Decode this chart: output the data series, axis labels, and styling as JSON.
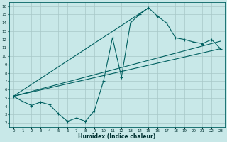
{
  "title": "",
  "xlabel": "Humidex (Indice chaleur)",
  "ylabel": "",
  "bg_color": "#c8e8e8",
  "grid_color": "#a8c8c8",
  "line_color": "#006060",
  "xlim": [
    -0.5,
    23.5
  ],
  "ylim": [
    1.5,
    16.5
  ],
  "xticks": [
    0,
    1,
    2,
    3,
    4,
    5,
    6,
    7,
    8,
    9,
    10,
    11,
    12,
    13,
    14,
    15,
    16,
    17,
    18,
    19,
    20,
    21,
    22,
    23
  ],
  "yticks": [
    2,
    3,
    4,
    5,
    6,
    7,
    8,
    9,
    10,
    11,
    12,
    13,
    14,
    15,
    16
  ],
  "zigzag_x": [
    0,
    1,
    2,
    3,
    4,
    5,
    6,
    7,
    8,
    9,
    10,
    11,
    12,
    13,
    14,
    15,
    16,
    17,
    18,
    19,
    20,
    21,
    22,
    23
  ],
  "zigzag_y": [
    5.2,
    4.6,
    4.1,
    4.5,
    4.2,
    3.1,
    2.2,
    2.6,
    2.2,
    3.5,
    7.0,
    12.2,
    7.5,
    14.0,
    15.0,
    15.8,
    14.8,
    14.0,
    12.2,
    12.0,
    11.7,
    11.5,
    12.0,
    10.9
  ],
  "line1_x": [
    0,
    23
  ],
  "line1_y": [
    5.2,
    10.9
  ],
  "line2_x": [
    0,
    15
  ],
  "line2_y": [
    5.2,
    15.8
  ],
  "line3_x": [
    0,
    23
  ],
  "line3_y": [
    5.2,
    11.8
  ]
}
